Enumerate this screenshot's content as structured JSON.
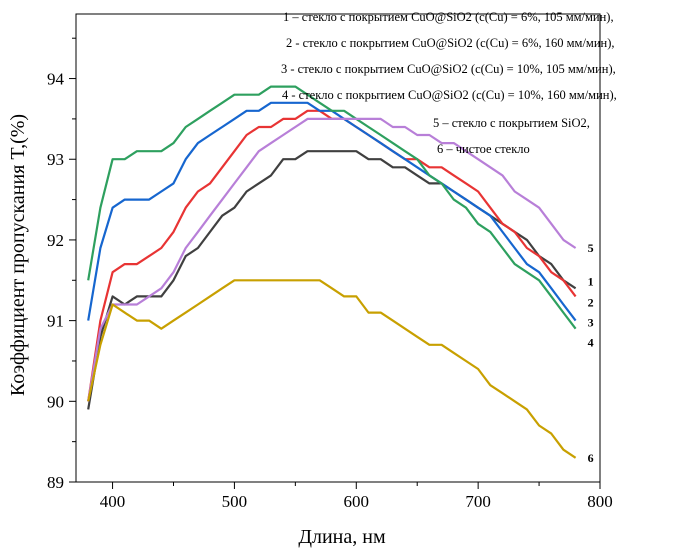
{
  "chart_data": {
    "type": "line",
    "xlabel": "Длина, нм",
    "ylabel": "Коэффициент пропускания T,(%)",
    "xlim": [
      370,
      800
    ],
    "ylim": [
      89,
      94.8
    ],
    "x_ticks": [
      400,
      500,
      600,
      700,
      800
    ],
    "y_ticks": [
      89,
      90,
      91,
      92,
      93,
      94
    ],
    "grid": false,
    "legend": [
      "1 – стекло с покрытием CuO@SiO2 (c(Cu) = 6%, 105 мм/мин),",
      "2 - стекло с покрытием CuO@SiO2 (c(Cu) = 6%, 160 мм/мин),",
      "3 - стекло с покрытием CuO@SiO2 (c(Cu) = 10%, 105 мм/мин),",
      "4 - стекло с покрытием CuO@SiO2 (c(Cu) = 10%, 160 мм/мин),",
      "5 – стекло с покрытием SiO2,",
      "6 – чистое стекло"
    ],
    "series": [
      {
        "name": "1",
        "color": "#404040",
        "points": [
          [
            380,
            89.9
          ],
          [
            390,
            90.8
          ],
          [
            400,
            91.3
          ],
          [
            410,
            91.2
          ],
          [
            420,
            91.3
          ],
          [
            430,
            91.3
          ],
          [
            440,
            91.3
          ],
          [
            450,
            91.5
          ],
          [
            460,
            91.8
          ],
          [
            470,
            91.9
          ],
          [
            480,
            92.1
          ],
          [
            490,
            92.3
          ],
          [
            500,
            92.4
          ],
          [
            510,
            92.6
          ],
          [
            520,
            92.7
          ],
          [
            530,
            92.8
          ],
          [
            540,
            93.0
          ],
          [
            550,
            93.0
          ],
          [
            560,
            93.1
          ],
          [
            570,
            93.1
          ],
          [
            580,
            93.1
          ],
          [
            590,
            93.1
          ],
          [
            600,
            93.1
          ],
          [
            610,
            93.0
          ],
          [
            620,
            93.0
          ],
          [
            630,
            92.9
          ],
          [
            640,
            92.9
          ],
          [
            650,
            92.8
          ],
          [
            660,
            92.7
          ],
          [
            670,
            92.7
          ],
          [
            680,
            92.6
          ],
          [
            690,
            92.5
          ],
          [
            700,
            92.4
          ],
          [
            710,
            92.3
          ],
          [
            720,
            92.2
          ],
          [
            730,
            92.1
          ],
          [
            740,
            92.0
          ],
          [
            750,
            91.8
          ],
          [
            760,
            91.7
          ],
          [
            770,
            91.5
          ],
          [
            780,
            91.4
          ]
        ]
      },
      {
        "name": "2",
        "color": "#e83434",
        "points": [
          [
            380,
            90.0
          ],
          [
            390,
            91.0
          ],
          [
            400,
            91.6
          ],
          [
            410,
            91.7
          ],
          [
            420,
            91.7
          ],
          [
            430,
            91.8
          ],
          [
            440,
            91.9
          ],
          [
            450,
            92.1
          ],
          [
            460,
            92.4
          ],
          [
            470,
            92.6
          ],
          [
            480,
            92.7
          ],
          [
            490,
            92.9
          ],
          [
            500,
            93.1
          ],
          [
            510,
            93.3
          ],
          [
            520,
            93.4
          ],
          [
            530,
            93.4
          ],
          [
            540,
            93.5
          ],
          [
            550,
            93.5
          ],
          [
            560,
            93.6
          ],
          [
            570,
            93.6
          ],
          [
            580,
            93.5
          ],
          [
            590,
            93.5
          ],
          [
            600,
            93.4
          ],
          [
            610,
            93.3
          ],
          [
            620,
            93.2
          ],
          [
            630,
            93.1
          ],
          [
            640,
            93.0
          ],
          [
            650,
            93.0
          ],
          [
            660,
            92.9
          ],
          [
            670,
            92.9
          ],
          [
            680,
            92.8
          ],
          [
            690,
            92.7
          ],
          [
            700,
            92.6
          ],
          [
            710,
            92.4
          ],
          [
            720,
            92.2
          ],
          [
            730,
            92.1
          ],
          [
            740,
            91.9
          ],
          [
            750,
            91.8
          ],
          [
            760,
            91.6
          ],
          [
            770,
            91.5
          ],
          [
            780,
            91.3
          ]
        ]
      },
      {
        "name": "3",
        "color": "#1666cf",
        "points": [
          [
            380,
            91.0
          ],
          [
            390,
            91.9
          ],
          [
            400,
            92.4
          ],
          [
            410,
            92.5
          ],
          [
            420,
            92.5
          ],
          [
            430,
            92.5
          ],
          [
            440,
            92.6
          ],
          [
            450,
            92.7
          ],
          [
            460,
            93.0
          ],
          [
            470,
            93.2
          ],
          [
            480,
            93.3
          ],
          [
            490,
            93.4
          ],
          [
            500,
            93.5
          ],
          [
            510,
            93.6
          ],
          [
            520,
            93.6
          ],
          [
            530,
            93.7
          ],
          [
            540,
            93.7
          ],
          [
            550,
            93.7
          ],
          [
            560,
            93.7
          ],
          [
            570,
            93.6
          ],
          [
            580,
            93.6
          ],
          [
            590,
            93.5
          ],
          [
            600,
            93.4
          ],
          [
            610,
            93.3
          ],
          [
            620,
            93.2
          ],
          [
            630,
            93.1
          ],
          [
            640,
            93.0
          ],
          [
            650,
            92.9
          ],
          [
            660,
            92.8
          ],
          [
            670,
            92.7
          ],
          [
            680,
            92.6
          ],
          [
            690,
            92.5
          ],
          [
            700,
            92.4
          ],
          [
            710,
            92.3
          ],
          [
            720,
            92.1
          ],
          [
            730,
            91.9
          ],
          [
            740,
            91.7
          ],
          [
            750,
            91.6
          ],
          [
            760,
            91.4
          ],
          [
            770,
            91.2
          ],
          [
            780,
            91.0
          ]
        ]
      },
      {
        "name": "4",
        "color": "#2ea05f",
        "points": [
          [
            380,
            91.5
          ],
          [
            390,
            92.4
          ],
          [
            400,
            93.0
          ],
          [
            410,
            93.0
          ],
          [
            420,
            93.1
          ],
          [
            430,
            93.1
          ],
          [
            440,
            93.1
          ],
          [
            450,
            93.2
          ],
          [
            460,
            93.4
          ],
          [
            470,
            93.5
          ],
          [
            480,
            93.6
          ],
          [
            490,
            93.7
          ],
          [
            500,
            93.8
          ],
          [
            510,
            93.8
          ],
          [
            520,
            93.8
          ],
          [
            530,
            93.9
          ],
          [
            540,
            93.9
          ],
          [
            550,
            93.9
          ],
          [
            560,
            93.8
          ],
          [
            570,
            93.7
          ],
          [
            580,
            93.6
          ],
          [
            590,
            93.6
          ],
          [
            600,
            93.5
          ],
          [
            610,
            93.4
          ],
          [
            620,
            93.3
          ],
          [
            630,
            93.2
          ],
          [
            640,
            93.1
          ],
          [
            650,
            93.0
          ],
          [
            660,
            92.8
          ],
          [
            670,
            92.7
          ],
          [
            680,
            92.5
          ],
          [
            690,
            92.4
          ],
          [
            700,
            92.2
          ],
          [
            710,
            92.1
          ],
          [
            720,
            91.9
          ],
          [
            730,
            91.7
          ],
          [
            740,
            91.6
          ],
          [
            750,
            91.5
          ],
          [
            760,
            91.3
          ],
          [
            770,
            91.1
          ],
          [
            780,
            90.9
          ]
        ]
      },
      {
        "name": "5",
        "color": "#b87fd8",
        "points": [
          [
            380,
            90.0
          ],
          [
            390,
            90.9
          ],
          [
            400,
            91.2
          ],
          [
            410,
            91.2
          ],
          [
            420,
            91.2
          ],
          [
            430,
            91.3
          ],
          [
            440,
            91.4
          ],
          [
            450,
            91.6
          ],
          [
            460,
            91.9
          ],
          [
            470,
            92.1
          ],
          [
            480,
            92.3
          ],
          [
            490,
            92.5
          ],
          [
            500,
            92.7
          ],
          [
            510,
            92.9
          ],
          [
            520,
            93.1
          ],
          [
            530,
            93.2
          ],
          [
            540,
            93.3
          ],
          [
            550,
            93.4
          ],
          [
            560,
            93.5
          ],
          [
            570,
            93.5
          ],
          [
            580,
            93.5
          ],
          [
            590,
            93.5
          ],
          [
            600,
            93.5
          ],
          [
            610,
            93.5
          ],
          [
            620,
            93.5
          ],
          [
            630,
            93.4
          ],
          [
            640,
            93.4
          ],
          [
            650,
            93.3
          ],
          [
            660,
            93.3
          ],
          [
            670,
            93.2
          ],
          [
            680,
            93.2
          ],
          [
            690,
            93.1
          ],
          [
            700,
            93.0
          ],
          [
            710,
            92.9
          ],
          [
            720,
            92.8
          ],
          [
            730,
            92.6
          ],
          [
            740,
            92.5
          ],
          [
            750,
            92.4
          ],
          [
            760,
            92.2
          ],
          [
            770,
            92.0
          ],
          [
            780,
            91.9
          ]
        ]
      },
      {
        "name": "6",
        "color": "#c8a000",
        "points": [
          [
            380,
            90.0
          ],
          [
            390,
            90.7
          ],
          [
            400,
            91.2
          ],
          [
            410,
            91.1
          ],
          [
            420,
            91.0
          ],
          [
            430,
            91.0
          ],
          [
            440,
            90.9
          ],
          [
            450,
            91.0
          ],
          [
            460,
            91.1
          ],
          [
            470,
            91.2
          ],
          [
            480,
            91.3
          ],
          [
            490,
            91.4
          ],
          [
            500,
            91.5
          ],
          [
            510,
            91.5
          ],
          [
            520,
            91.5
          ],
          [
            530,
            91.5
          ],
          [
            540,
            91.5
          ],
          [
            550,
            91.5
          ],
          [
            560,
            91.5
          ],
          [
            570,
            91.5
          ],
          [
            580,
            91.4
          ],
          [
            590,
            91.3
          ],
          [
            600,
            91.3
          ],
          [
            610,
            91.1
          ],
          [
            620,
            91.1
          ],
          [
            630,
            91.0
          ],
          [
            640,
            90.9
          ],
          [
            650,
            90.8
          ],
          [
            660,
            90.7
          ],
          [
            670,
            90.7
          ],
          [
            680,
            90.6
          ],
          [
            690,
            90.5
          ],
          [
            700,
            90.4
          ],
          [
            710,
            90.2
          ],
          [
            720,
            90.1
          ],
          [
            730,
            90.0
          ],
          [
            740,
            89.9
          ],
          [
            750,
            89.7
          ],
          [
            760,
            89.6
          ],
          [
            770,
            89.4
          ],
          [
            780,
            89.3
          ]
        ]
      }
    ]
  }
}
